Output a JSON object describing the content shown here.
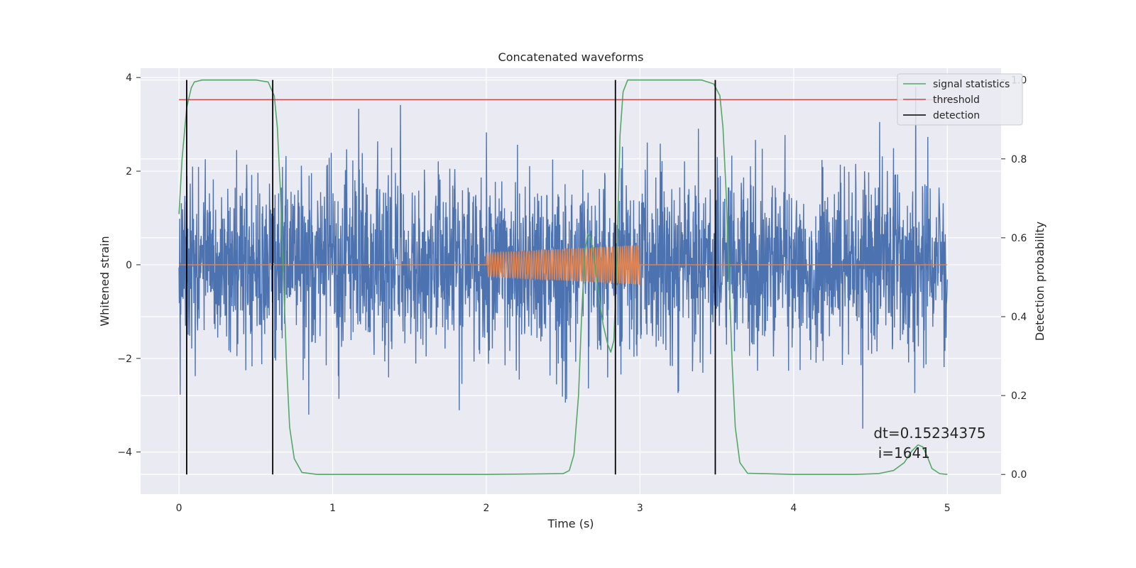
{
  "chart_data": {
    "type": "line",
    "title": "Concatenated waveforms",
    "xlabel": "Time (s)",
    "ylabel": "Whitened strain",
    "ylabel_right": "Detection probability",
    "xlim": [
      -0.25,
      5.35
    ],
    "ylim": [
      -4.9,
      4.2
    ],
    "ylim_right": [
      -0.05,
      1.03
    ],
    "x_ticks": [
      0,
      1,
      2,
      3,
      4,
      5
    ],
    "y_ticks": [
      -4,
      -2,
      0,
      2,
      4
    ],
    "y_ticks_right": [
      0.0,
      0.2,
      0.4,
      0.6,
      0.8,
      1.0
    ],
    "x_tick_labels": [
      "0",
      "1",
      "2",
      "3",
      "4",
      "5"
    ],
    "y_tick_labels": [
      "−4",
      "−2",
      "0",
      "2",
      "4"
    ],
    "y_tick_labels_right": [
      "0.0",
      "0.2",
      "0.4",
      "0.6",
      "0.8",
      "1.0"
    ],
    "grid": true,
    "legend_position": "top-right",
    "legend": [
      "signal statistics",
      "threshold",
      "detection"
    ],
    "annotation": {
      "line1": "dt=0.15234375",
      "line2": " i=1641",
      "x": 4.52,
      "y": -3.7
    },
    "series": [
      {
        "name": "",
        "kind": "whitened-noise",
        "axis": "left",
        "color": "#4c72b0",
        "x_range": [
          0,
          5
        ],
        "amplitude_min": -3.5,
        "amplitude_max": 3.8
      },
      {
        "name": "",
        "kind": "injected-waveform",
        "axis": "left",
        "color": "#dd8452",
        "x": [
          0,
          2.0,
          2.0,
          3.0,
          3.0,
          5.0
        ],
        "envelope_start": 0.25,
        "envelope_end": 0.42
      },
      {
        "name": "signal statistics",
        "axis": "right",
        "color": "#55a868",
        "x": [
          0.0,
          0.02,
          0.05,
          0.08,
          0.1,
          0.15,
          0.3,
          0.5,
          0.58,
          0.62,
          0.64,
          0.66,
          0.68,
          0.7,
          0.72,
          0.75,
          0.8,
          0.9,
          1.5,
          2.0,
          2.5,
          2.54,
          2.57,
          2.6,
          2.62,
          2.64,
          2.66,
          2.68,
          2.7,
          2.73,
          2.76,
          2.79,
          2.81,
          2.83,
          2.85,
          2.87,
          2.89,
          2.92,
          3.0,
          3.4,
          3.48,
          3.52,
          3.54,
          3.56,
          3.58,
          3.6,
          3.62,
          3.65,
          3.7,
          4.0,
          4.4,
          4.55,
          4.65,
          4.72,
          4.77,
          4.81,
          4.84,
          4.87,
          4.9,
          4.95,
          5.0
        ],
        "y": [
          0.66,
          0.8,
          0.93,
          0.98,
          0.995,
          1.0,
          1.0,
          1.0,
          0.995,
          0.96,
          0.88,
          0.72,
          0.5,
          0.28,
          0.12,
          0.04,
          0.005,
          0.0,
          0.0,
          0.0,
          0.002,
          0.01,
          0.05,
          0.2,
          0.4,
          0.56,
          0.61,
          0.6,
          0.55,
          0.46,
          0.38,
          0.33,
          0.31,
          0.34,
          0.55,
          0.86,
          0.97,
          1.0,
          1.0,
          1.0,
          0.99,
          0.96,
          0.88,
          0.72,
          0.5,
          0.28,
          0.12,
          0.03,
          0.003,
          0.0,
          0.0,
          0.002,
          0.01,
          0.03,
          0.06,
          0.075,
          0.07,
          0.045,
          0.015,
          0.002,
          0.0
        ]
      },
      {
        "name": "threshold",
        "axis": "right",
        "color": "#c44e52",
        "x": [
          0,
          5.05
        ],
        "y": [
          0.95,
          0.95
        ]
      }
    ],
    "detections": {
      "name": "detection",
      "color": "#000000",
      "x": [
        0.05,
        0.61,
        2.84,
        3.49
      ],
      "y_range": [
        0.0,
        1.0
      ]
    }
  }
}
